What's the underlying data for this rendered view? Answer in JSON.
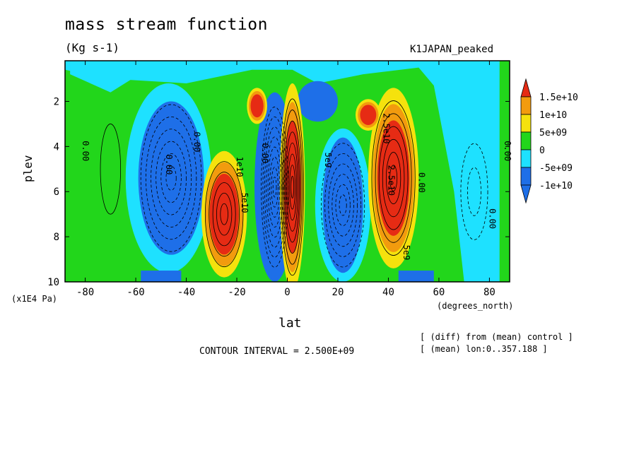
{
  "title": "mass stream function",
  "units": "(Kg s-1)",
  "case_label": "K1JAPAN_peaked",
  "footnotes": [
    "[ (diff) from (mean) control ]",
    "[ (mean) lon:0..357.188 ]"
  ],
  "chart_data": {
    "type": "heatmap",
    "subtype": "filled contour",
    "xlabel": "lat",
    "ylabel": "plev",
    "x_units_label": "(degrees_north)",
    "y_multiplier_label": "(x1E4 Pa)",
    "xlim": [
      -88,
      88
    ],
    "ylim": [
      0.2,
      10
    ],
    "y_inverted": true,
    "x_ticks": [
      -80,
      -60,
      -40,
      -20,
      0,
      20,
      40,
      60,
      80
    ],
    "y_ticks": [
      2,
      4,
      6,
      8,
      10
    ],
    "contour_interval_text": "CONTOUR INTERVAL = 2.500E+09",
    "colorbar": {
      "levels": [
        {
          "label": "1.5e+10",
          "color": "#e62b14"
        },
        {
          "label": "1e+10",
          "color": "#f29b0e"
        },
        {
          "label": "5e+09",
          "color": "#f5e20d"
        },
        {
          "label": "0",
          "color": "#22d61b"
        },
        {
          "label": "-5e+09",
          "color": "#1ee1ff"
        },
        {
          "label": "-1e+10",
          "color": "#1e6fe8"
        }
      ],
      "over_color": "#e62b14",
      "under_color": "#2a3bd4"
    },
    "features": [
      {
        "kind": "max",
        "lat": -25,
        "plev": 7.2,
        "value": 15000000000.0
      },
      {
        "kind": "max",
        "lat": 2,
        "plev": 6,
        "value": 15000000000.0
      },
      {
        "kind": "max",
        "lat": 43,
        "plev": 5.5,
        "value": 15000000000.0
      },
      {
        "kind": "min",
        "lat": -47,
        "plev": 5.5,
        "value": -10000000000.0
      },
      {
        "kind": "min",
        "lat": 22,
        "plev": 6.5,
        "value": -10000000000.0
      },
      {
        "kind": "min",
        "lat": -5,
        "plev": 6,
        "value": -10000000000.0
      }
    ],
    "contour_labels": [
      {
        "text": "0.00",
        "lat": -81,
        "plev": 4.2
      },
      {
        "text": "0.00",
        "lat": -48,
        "plev": 4.8
      },
      {
        "text": "0.00",
        "lat": -37,
        "plev": 3.8
      },
      {
        "text": "0.00",
        "lat": -10,
        "plev": 4.3
      },
      {
        "text": "5e9",
        "lat": 15,
        "plev": 4.6
      },
      {
        "text": "1e10",
        "lat": -20,
        "plev": 4.9
      },
      {
        "text": "5e10",
        "lat": -18,
        "plev": 6.5
      },
      {
        "text": "2.5e10",
        "lat": 38,
        "plev": 3.2
      },
      {
        "text": "2.5e10",
        "lat": 40,
        "plev": 5.5
      },
      {
        "text": "0.00",
        "lat": 52,
        "plev": 5.6
      },
      {
        "text": "0.00",
        "lat": 80,
        "plev": 7.2
      },
      {
        "text": "0.00",
        "lat": 86,
        "plev": 4.2
      },
      {
        "text": "5e9",
        "lat": 46,
        "plev": 8.7
      }
    ]
  }
}
